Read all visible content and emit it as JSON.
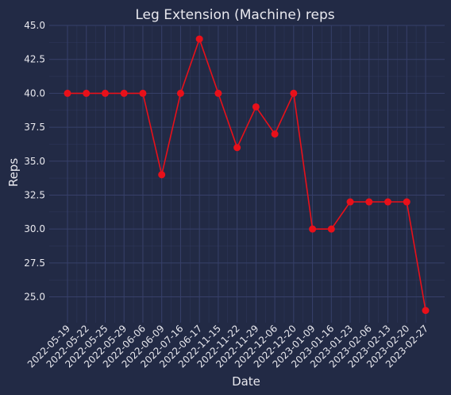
{
  "colors": {
    "background": "#222a45",
    "plot_background": "#222a45",
    "grid": "#37406a",
    "line": "#e8101a",
    "text": "#e8e8ee"
  },
  "chart_data": {
    "type": "line",
    "title": "Leg Extension (Machine) reps",
    "xlabel": "Date",
    "ylabel": "Reps",
    "categories": [
      "2022-05-19",
      "2022-05-22",
      "2022-05-25",
      "2022-05-29",
      "2022-06-06",
      "2022-06-09",
      "2022-07-16",
      "2022-06-17",
      "2022-11-15",
      "2022-11-22",
      "2022-11-29",
      "2022-12-06",
      "2022-12-20",
      "2023-01-09",
      "2023-01-16",
      "2023-01-23",
      "2023-02-06",
      "2023-02-13",
      "2023-02-20",
      "2023-02-27"
    ],
    "series": [
      {
        "values": [
          40,
          40,
          40,
          40,
          40,
          34,
          40,
          44,
          40,
          36,
          39,
          37,
          40,
          30,
          30,
          32,
          32,
          32,
          32,
          24
        ]
      }
    ],
    "ylim": [
      23.1,
      45
    ],
    "yticks": [
      "25.0",
      "27.5",
      "30.0",
      "32.5",
      "35.0",
      "37.5",
      "40.0",
      "42.5",
      "45.0"
    ],
    "grid": true,
    "legend": "none"
  }
}
